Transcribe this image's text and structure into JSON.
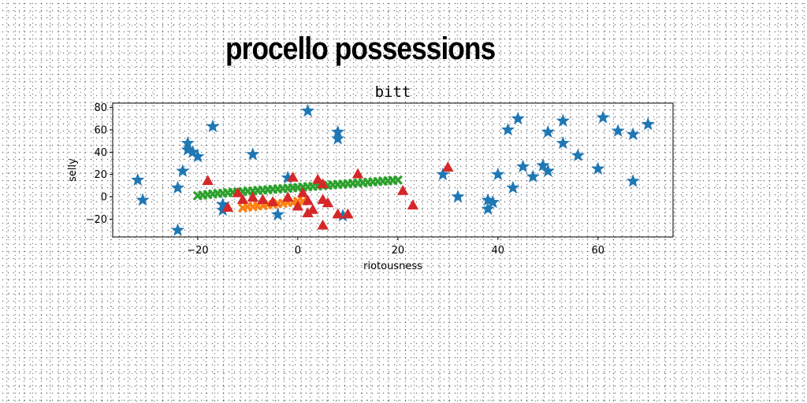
{
  "headline": "procello possessions",
  "chart_data": {
    "type": "scatter",
    "title": "bitt",
    "xlabel": "riotousness",
    "ylabel": "selly",
    "xlim": [
      -37,
      75
    ],
    "ylim": [
      -36,
      84
    ],
    "xticks": [
      -20,
      0,
      20,
      40,
      60
    ],
    "yticks": [
      -20,
      0,
      20,
      40,
      60,
      80
    ],
    "grid": false,
    "series": [
      {
        "marker": "star",
        "color": "#1f77b4",
        "points": [
          [
            -32,
            15
          ],
          [
            -31,
            -3
          ],
          [
            -24,
            8
          ],
          [
            -24,
            -30
          ],
          [
            -23,
            23
          ],
          [
            -22,
            48
          ],
          [
            -22,
            42
          ],
          [
            -21,
            40
          ],
          [
            -20,
            36
          ],
          [
            -17,
            63
          ],
          [
            -15,
            -12
          ],
          [
            -15,
            -7
          ],
          [
            -9,
            38
          ],
          [
            -4,
            -16
          ],
          [
            -2,
            17
          ],
          [
            2,
            77
          ],
          [
            8,
            58
          ],
          [
            8,
            52
          ],
          [
            9,
            -17
          ],
          [
            29,
            20
          ],
          [
            32,
            0
          ],
          [
            38,
            -11
          ],
          [
            38,
            -3
          ],
          [
            39,
            -5
          ],
          [
            40,
            20
          ],
          [
            42,
            60
          ],
          [
            43,
            8
          ],
          [
            44,
            70
          ],
          [
            45,
            27
          ],
          [
            47,
            18
          ],
          [
            49,
            28
          ],
          [
            50,
            58
          ],
          [
            50,
            23
          ],
          [
            53,
            68
          ],
          [
            53,
            48
          ],
          [
            56,
            37
          ],
          [
            60,
            25
          ],
          [
            61,
            71
          ],
          [
            64,
            59
          ],
          [
            67,
            56
          ],
          [
            67,
            14
          ],
          [
            70,
            65
          ]
        ]
      },
      {
        "marker": "x",
        "color": "#ff7f0e",
        "points": [
          [
            -11,
            -10
          ],
          [
            -10,
            -9
          ],
          [
            -9,
            -9
          ],
          [
            -8,
            -8
          ],
          [
            -7,
            -8
          ],
          [
            -6,
            -7
          ],
          [
            -5,
            -7
          ],
          [
            -4,
            -6
          ],
          [
            -3,
            -6
          ],
          [
            -2,
            -5
          ],
          [
            -1,
            -5
          ],
          [
            0,
            -4
          ],
          [
            1,
            -4
          ]
        ]
      },
      {
        "marker": "x",
        "color": "#2ca02c",
        "points": [
          [
            -20,
            1
          ],
          [
            -19,
            1.5
          ],
          [
            -18,
            2
          ],
          [
            -17,
            2.5
          ],
          [
            -16,
            3
          ],
          [
            -15,
            3.2
          ],
          [
            -14,
            3.6
          ],
          [
            -13,
            4
          ],
          [
            -12,
            4.3
          ],
          [
            -11,
            4.7
          ],
          [
            -10,
            5
          ],
          [
            -9,
            5.3
          ],
          [
            -8,
            5.7
          ],
          [
            -7,
            6
          ],
          [
            -6,
            6.3
          ],
          [
            -5,
            6.7
          ],
          [
            -4,
            7
          ],
          [
            -3,
            7.3
          ],
          [
            -2,
            7.7
          ],
          [
            -1,
            8
          ],
          [
            0,
            8.3
          ],
          [
            1,
            8.7
          ],
          [
            2,
            9
          ],
          [
            3,
            9.3
          ],
          [
            4,
            9.7
          ],
          [
            5,
            10
          ],
          [
            6,
            10.3
          ],
          [
            7,
            10.7
          ],
          [
            8,
            11
          ],
          [
            9,
            11.3
          ],
          [
            10,
            11.7
          ],
          [
            11,
            12
          ],
          [
            12,
            12.3
          ],
          [
            13,
            12.7
          ],
          [
            14,
            13
          ],
          [
            15,
            13.3
          ],
          [
            16,
            13.7
          ],
          [
            17,
            14
          ],
          [
            18,
            14.3
          ],
          [
            19,
            14.7
          ],
          [
            20,
            15
          ]
        ]
      },
      {
        "marker": "triangle",
        "color": "#d62728",
        "points": [
          [
            -18,
            14
          ],
          [
            -14,
            -10
          ],
          [
            -12,
            3
          ],
          [
            -11,
            -3
          ],
          [
            -9,
            -1
          ],
          [
            -7,
            -3
          ],
          [
            -5,
            -5
          ],
          [
            -2,
            -1
          ],
          [
            -1,
            17
          ],
          [
            0,
            -9
          ],
          [
            1,
            3
          ],
          [
            2,
            -15
          ],
          [
            2,
            -4
          ],
          [
            3,
            -12
          ],
          [
            4,
            15
          ],
          [
            5,
            11
          ],
          [
            5,
            -3
          ],
          [
            5,
            -26
          ],
          [
            6,
            -6
          ],
          [
            8,
            -16
          ],
          [
            10,
            -16
          ],
          [
            12,
            20
          ],
          [
            21,
            5
          ],
          [
            23,
            -8
          ],
          [
            30,
            26
          ]
        ]
      }
    ]
  }
}
